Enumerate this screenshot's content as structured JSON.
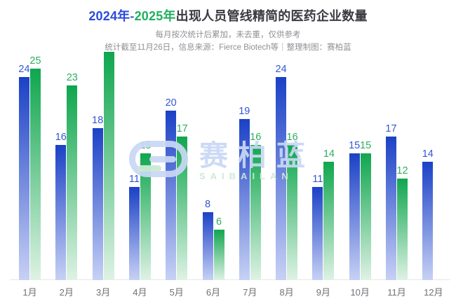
{
  "title": {
    "part_2024": "2024年",
    "dash": "-",
    "part_2025": "2025年",
    "rest": "出现人员管线精简的医药企业数量",
    "color_2024": "#2A4BDB",
    "color_dash": "#4A5AD0",
    "color_2025": "#1FB05C",
    "color_rest": "#3A3A40"
  },
  "subtitle_line1": "每月按次统计后累加，未去重，仅供参考",
  "subtitle_line2": "统计截至11月26日，信息来源：Fierce Biotech等｜整理制图：赛柏蓝",
  "watermark": {
    "logo": "saibailan-logo",
    "text": "赛柏蓝",
    "subtext": "SAIBAILAN",
    "color_blue": "#CBD8F4",
    "color_green": "#D4EDDC"
  },
  "chart_data": {
    "type": "bar",
    "title": "2024年-2025年出现人员管线精简的医药企业数量",
    "categories": [
      "1月",
      "2月",
      "3月",
      "4月",
      "5月",
      "6月",
      "7月",
      "8月",
      "9月",
      "10月",
      "11月",
      "12月"
    ],
    "series": [
      {
        "name": "2024年",
        "values": [
          24,
          16,
          18,
          11,
          20,
          8,
          19,
          24,
          11,
          15,
          17,
          14
        ],
        "color_top": "#1B41C6",
        "color_bottom": "#C7D1F5",
        "label_color": "#3356D6",
        "label_hidden_indices": []
      },
      {
        "name": "2025年",
        "values": [
          25,
          23,
          27,
          15,
          17,
          6,
          16,
          16,
          14,
          15,
          12,
          null
        ],
        "color_top": "#0FA64E",
        "color_bottom": "#DEF2E4",
        "label_color": "#2EAE5D",
        "label_hidden_indices": [
          2
        ]
      }
    ],
    "ylim": [
      0,
      27.5
    ],
    "grid": false,
    "legend_position": "none",
    "value_labels": "above-bars",
    "axis_line_color": "#E6E6E9",
    "month_label_color": "#707076",
    "notes": "2025年3月柱最高(约27)，数值标签被副标题遮挡未显示；2025年12月无数据柱"
  }
}
